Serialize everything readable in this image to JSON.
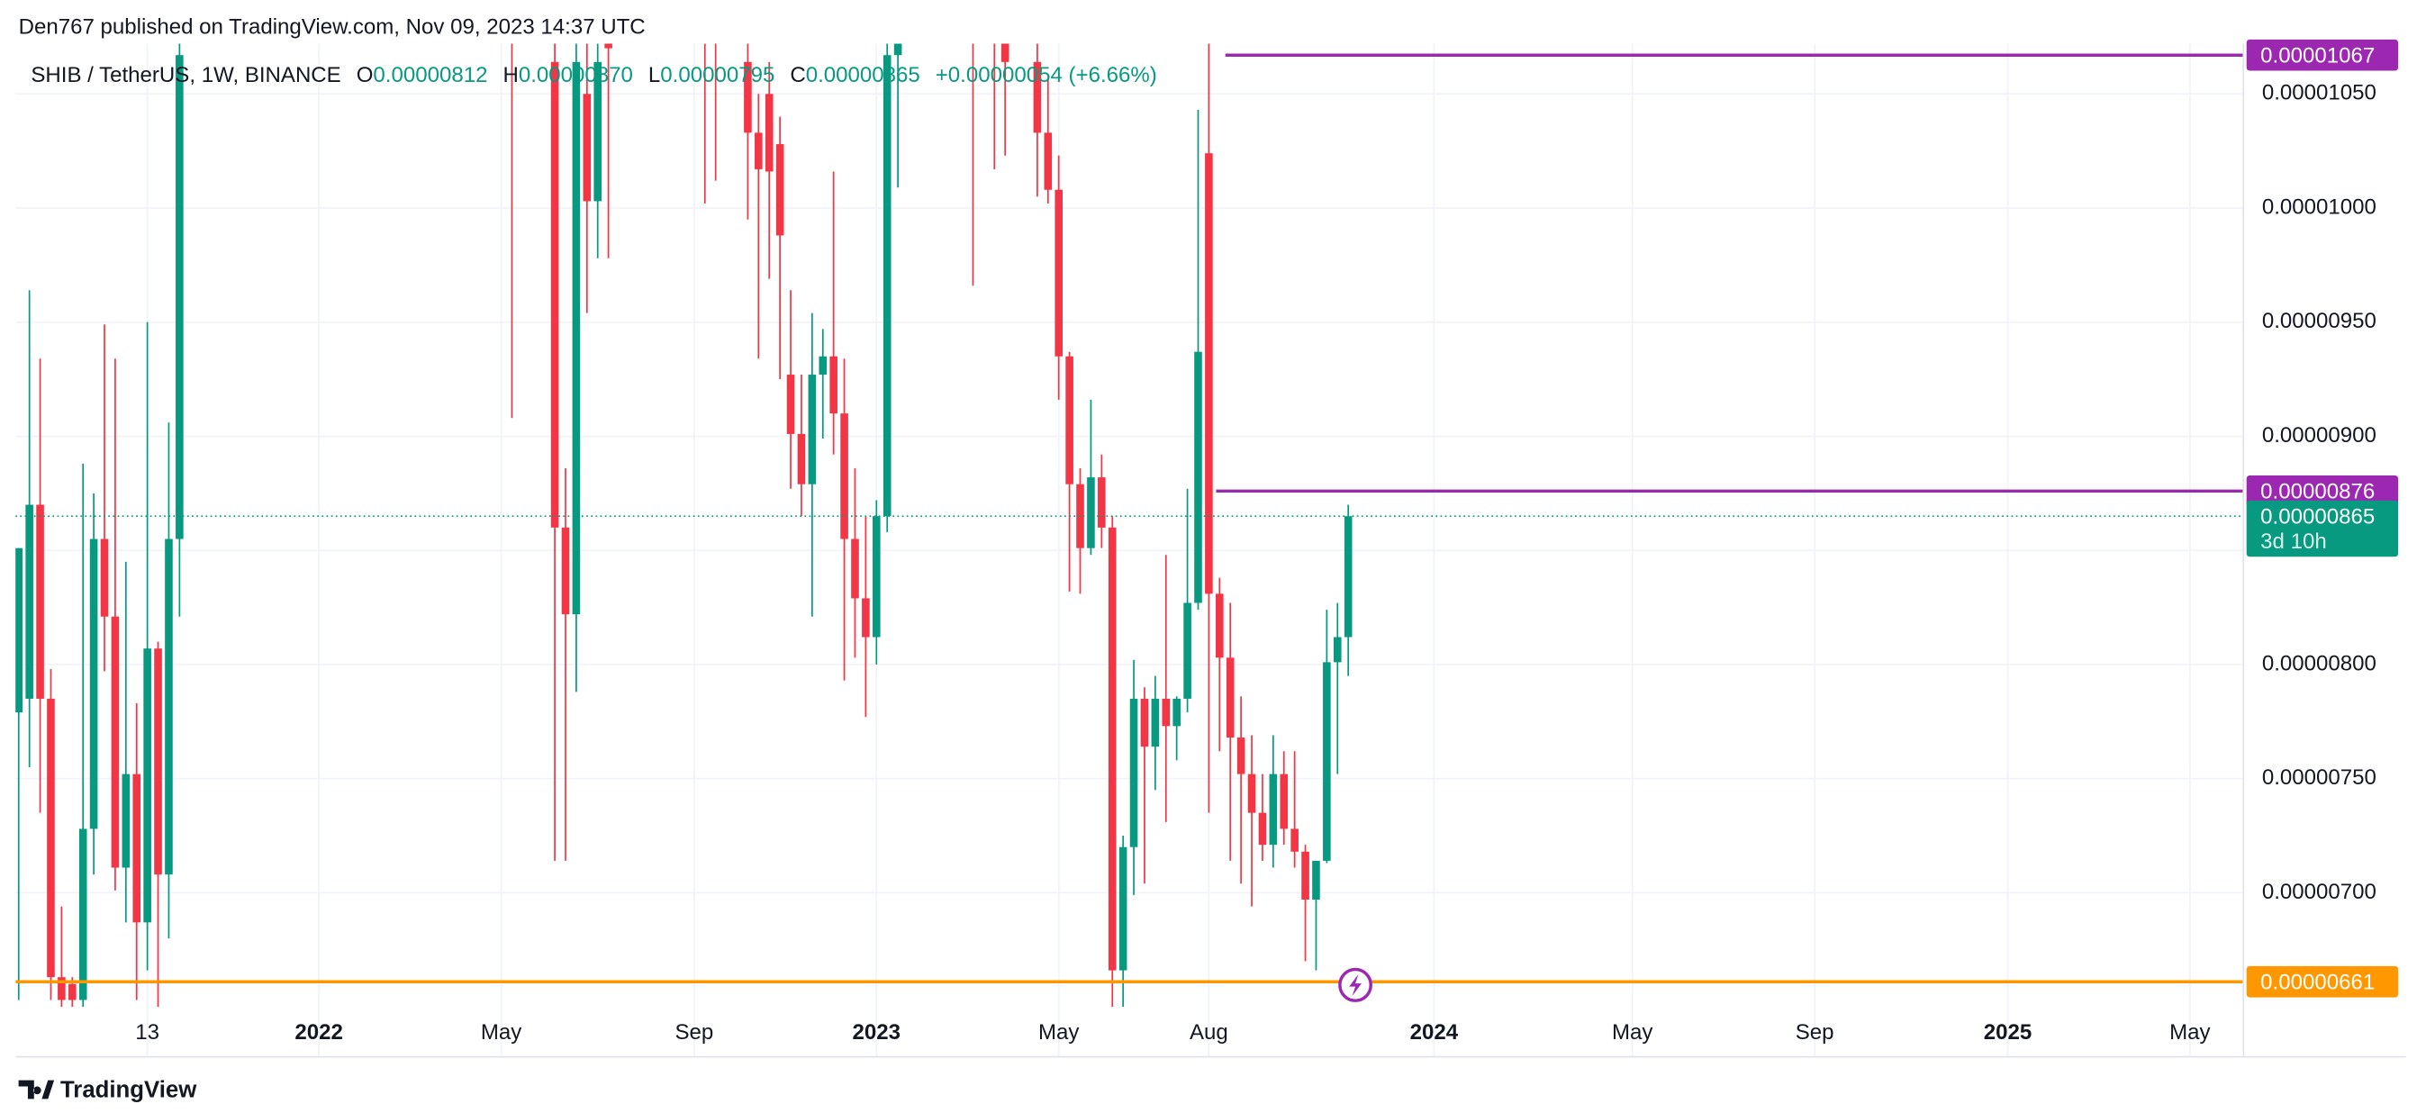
{
  "header": {
    "publisher": "Den767 published on TradingView.com, Nov 09, 2023 14:37 UTC"
  },
  "legend": {
    "symbol": "SHIB / TetherUS, 1W, BINANCE",
    "o_label": "O",
    "o": "0.00000812",
    "h_label": "H",
    "h": "0.00000870",
    "l_label": "L",
    "l": "0.00000795",
    "c_label": "C",
    "c": "0.00000865",
    "change": "+0.00000054 (+6.66%)"
  },
  "footer": {
    "brand": "TradingView"
  },
  "chart_data": {
    "type": "candlestick",
    "up_color": "#089981",
    "down_color": "#f23645",
    "grid": true,
    "xlim": [
      -0.3,
      207.2
    ],
    "xticks": [
      {
        "value": 12,
        "label": "13"
      },
      {
        "value": 28,
        "label": "2022"
      },
      {
        "value": 45,
        "label": "May"
      },
      {
        "value": 63,
        "label": "Sep"
      },
      {
        "value": 80,
        "label": "2023"
      },
      {
        "value": 97,
        "label": "May"
      },
      {
        "value": 111,
        "label": "Aug"
      },
      {
        "value": 132,
        "label": "2024"
      },
      {
        "value": 150.5,
        "label": "May"
      },
      {
        "value": 167.5,
        "label": "Sep"
      },
      {
        "value": 185.5,
        "label": "2025"
      },
      {
        "value": 202.5,
        "label": "May"
      }
    ],
    "ylim": [
      6.5e-06,
      1.072e-05
    ],
    "yticks": [
      {
        "value": 1.05e-05,
        "label": "0.00001050"
      },
      {
        "value": 1e-05,
        "label": "0.00001000"
      },
      {
        "value": 9.5e-06,
        "label": "0.00000950"
      },
      {
        "value": 9e-06,
        "label": "0.00000900"
      },
      {
        "value": 8.5e-06,
        "label": "0.00000850"
      },
      {
        "value": 8e-06,
        "label": "0.00000800"
      },
      {
        "value": 7.5e-06,
        "label": "0.00000750"
      },
      {
        "value": 7e-06,
        "label": "0.00000700"
      }
    ],
    "candles": {
      "x": [
        0,
        1,
        2,
        3,
        4,
        5,
        6,
        7,
        8,
        9,
        10,
        11,
        12,
        13,
        14,
        15,
        46,
        50,
        51,
        52,
        53,
        54,
        55,
        64,
        65,
        68,
        69,
        70,
        71,
        72,
        73,
        74,
        75,
        76,
        77,
        78,
        79,
        80,
        81,
        82,
        89,
        91,
        92,
        95,
        96,
        97,
        98,
        99,
        100,
        101,
        102,
        103,
        104,
        105,
        106,
        107,
        108,
        109,
        110,
        111,
        112,
        113,
        114,
        115,
        116,
        117,
        118,
        119,
        120,
        121,
        122,
        123,
        124
      ],
      "open": [
        7.79e-06,
        7.85e-06,
        8.7e-06,
        7.85e-06,
        6.63e-06,
        6.6e-06,
        6.53e-06,
        7.28e-06,
        8.55e-06,
        8.21e-06,
        7.11e-06,
        7.52e-06,
        6.87e-06,
        8.07e-06,
        7.08e-06,
        8.55e-06,
        1.12e-05,
        1.064e-05,
        8.6e-06,
        8.22e-06,
        1.05e-05,
        1.003e-05,
        1.085e-05,
        1.1e-05,
        1.09e-05,
        1.064e-05,
        1.033e-05,
        1.05e-05,
        1.028e-05,
        9.27e-06,
        9.01e-06,
        8.79e-06,
        9.27e-06,
        9.35e-06,
        9.1e-06,
        8.55e-06,
        8.29e-06,
        8.12e-06,
        8.65e-06,
        1.067e-05,
        1.1e-05,
        1.09e-05,
        1.08e-05,
        1.064e-05,
        1.033e-05,
        1.008e-05,
        9.35e-06,
        8.79e-06,
        8.51e-06,
        8.82e-06,
        8.6e-06,
        6.66e-06,
        7.2e-06,
        7.85e-06,
        7.64e-06,
        7.85e-06,
        7.73e-06,
        7.85e-06,
        8.27e-06,
        1.024e-05,
        8.31e-06,
        8.03e-06,
        7.68e-06,
        7.52e-06,
        7.35e-06,
        7.21e-06,
        7.52e-06,
        7.28e-06,
        7.18e-06,
        6.97e-06,
        7.14e-06,
        8.01e-06,
        8.12e-06
      ],
      "high": [
        8.51e-06,
        9.64e-06,
        9.34e-06,
        7.98e-06,
        6.94e-06,
        6.63e-06,
        8.88e-06,
        8.75e-06,
        9.49e-06,
        9.34e-06,
        8.45e-06,
        7.83e-06,
        9.5e-06,
        8.1e-06,
        9.06e-06,
        1.091e-05,
        1.15e-05,
        1.091e-05,
        8.86e-06,
        1.091e-05,
        1.091e-05,
        1.091e-05,
        1.091e-05,
        1.12e-05,
        1.11e-05,
        1.091e-05,
        1.05e-05,
        1.064e-05,
        1.04e-05,
        9.64e-06,
        9.27e-06,
        9.54e-06,
        9.47e-06,
        1.016e-05,
        9.34e-06,
        8.86e-06,
        8.65e-06,
        8.72e-06,
        1.091e-05,
        1.09e-05,
        1.12e-05,
        1.11e-05,
        1.1e-05,
        1.091e-05,
        1.057e-05,
        1.023e-05,
        9.37e-06,
        8.86e-06,
        9.16e-06,
        8.92e-06,
        8.65e-06,
        7.25e-06,
        8.02e-06,
        7.9e-06,
        7.95e-06,
        8.48e-06,
        7.86e-06,
        8.77e-06,
        1.043e-05,
        1.072e-05,
        8.38e-06,
        8.27e-06,
        7.86e-06,
        7.69e-06,
        7.52e-06,
        7.69e-06,
        7.62e-06,
        7.62e-06,
        7.21e-06,
        7.08e-06,
        8.24e-06,
        8.27e-06,
        8.7e-06
      ],
      "low": [
        6.53e-06,
        7.55e-06,
        7.35e-06,
        6.53e-06,
        6.49e-06,
        6.49e-06,
        6.49e-06,
        7.08e-06,
        7.97e-06,
        7.01e-06,
        6.87e-06,
        6.53e-06,
        6.66e-06,
        6.49e-06,
        6.8e-06,
        8.21e-06,
        9.08e-06,
        7.14e-06,
        7.14e-06,
        7.88e-06,
        9.54e-06,
        9.78e-06,
        9.78e-06,
        1.002e-05,
        1.012e-05,
        9.95e-06,
        9.34e-06,
        9.69e-06,
        9.25e-06,
        8.77e-06,
        8.65e-06,
        8.21e-06,
        8.99e-06,
        8.92e-06,
        7.93e-06,
        8.03e-06,
        7.77e-06,
        8e-06,
        8.58e-06,
        1.009e-05,
        9.66e-06,
        1.017e-05,
        1.023e-05,
        1.005e-05,
        1.002e-05,
        9.16e-06,
        8.32e-06,
        8.31e-06,
        8.48e-06,
        8.51e-06,
        6.49e-06,
        6.49e-06,
        6.99e-06,
        7.04e-06,
        7.45e-06,
        7.31e-06,
        7.58e-06,
        7.79e-06,
        8.24e-06,
        7.35e-06,
        7.62e-06,
        7.14e-06,
        7.04e-06,
        6.94e-06,
        7.14e-06,
        7.11e-06,
        7.21e-06,
        7.11e-06,
        6.7e-06,
        6.66e-06,
        7.13e-06,
        7.52e-06,
        7.95e-06
      ],
      "close": [
        8.51e-06,
        8.7e-06,
        7.85e-06,
        6.63e-06,
        6.53e-06,
        6.53e-06,
        7.28e-06,
        8.55e-06,
        8.21e-06,
        7.11e-06,
        7.52e-06,
        6.87e-06,
        8.07e-06,
        7.08e-06,
        8.55e-06,
        1.067e-05,
        1.095e-05,
        8.6e-06,
        8.22e-06,
        1.064e-05,
        1.003e-05,
        1.064e-05,
        1.07e-05,
        1.085e-05,
        1.08e-05,
        1.033e-05,
        1.017e-05,
        1.016e-05,
        9.88e-06,
        9.01e-06,
        8.79e-06,
        9.27e-06,
        9.35e-06,
        9.1e-06,
        8.55e-06,
        8.29e-06,
        8.12e-06,
        8.65e-06,
        1.067e-05,
        1.08e-05,
        1.08e-05,
        1.075e-05,
        1.064e-05,
        1.033e-05,
        1.008e-05,
        9.35e-06,
        8.79e-06,
        8.51e-06,
        8.82e-06,
        8.6e-06,
        6.66e-06,
        7.2e-06,
        7.85e-06,
        7.64e-06,
        7.85e-06,
        7.73e-06,
        7.85e-06,
        8.27e-06,
        9.37e-06,
        8.31e-06,
        8.03e-06,
        7.68e-06,
        7.52e-06,
        7.35e-06,
        7.21e-06,
        7.52e-06,
        7.28e-06,
        7.18e-06,
        6.97e-06,
        7.14e-06,
        8.01e-06,
        8.12e-06,
        8.65e-06
      ]
    },
    "levels": [
      {
        "value": 1.067e-05,
        "color": "#9c27b0"
      },
      {
        "value": 8.76e-06,
        "color": "#9c27b0"
      },
      {
        "value": 6.61e-06,
        "color": "#ff9800"
      }
    ],
    "last_price_color": "#089981",
    "countdown": "3d 10h"
  }
}
